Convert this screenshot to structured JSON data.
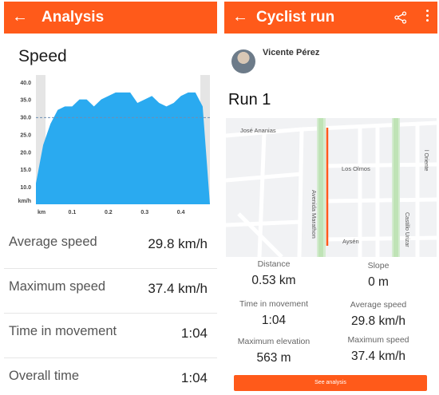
{
  "left": {
    "header": {
      "back_icon": "←",
      "title": "Analysis"
    },
    "section_title": "Speed",
    "stats": [
      {
        "label": "Average speed",
        "value": "29.8 km/h"
      },
      {
        "label": "Maximum speed",
        "value": "37.4 km/h"
      },
      {
        "label": "Time in movement",
        "value": "1:04"
      },
      {
        "label": "Overall time",
        "value": "1:04"
      }
    ]
  },
  "chart_data": {
    "type": "area",
    "x": [
      0.0,
      0.02,
      0.04,
      0.06,
      0.08,
      0.1,
      0.12,
      0.14,
      0.16,
      0.18,
      0.2,
      0.22,
      0.24,
      0.26,
      0.28,
      0.3,
      0.32,
      0.34,
      0.36,
      0.38,
      0.4,
      0.42,
      0.44,
      0.46,
      0.48
    ],
    "values": [
      11,
      22,
      28,
      32,
      33,
      33,
      35,
      35,
      33,
      35,
      36,
      37,
      37,
      37,
      34,
      35,
      36,
      34,
      33,
      34,
      36,
      37,
      37,
      33,
      0
    ],
    "average": 29.8,
    "y_ticks": [
      "10.0",
      "15.0",
      "20.0",
      "25.0",
      "30.0",
      "35.0",
      "40.0"
    ],
    "x_ticks": [
      "0.1",
      "0.2",
      "0.3",
      "0.4"
    ],
    "xlabel": "km",
    "ylabel": "km/h",
    "ylim": [
      5,
      42
    ],
    "xlim": [
      0,
      0.48
    ],
    "colors": {
      "area": "#2aaaf0",
      "area_dark": "#1e9de6",
      "grey": "#e5e5e5",
      "average": "#6e8fb4"
    }
  },
  "right": {
    "header": {
      "back_icon": "←",
      "title": "Cyclist run",
      "share_icon": "share-icon",
      "more_icon": "more-vert-icon"
    },
    "user_name": "Vicente Pérez",
    "run_title": "Run 1",
    "map_labels": {
      "jose_anania": "José Ananias",
      "los_olmos": "Los Olmos",
      "avenida": "Avenida Marathon",
      "aysen": "Aysén",
      "oriente": "l Oriente",
      "castillo": "Castillo Urizar"
    },
    "metrics": [
      {
        "label": "Distance",
        "value": "0.53 km"
      },
      {
        "label": "Slope",
        "value": "0 m"
      },
      {
        "label": "Time in movement",
        "value": "1:04"
      },
      {
        "label": "Average speed",
        "value": "29.8 km/h"
      },
      {
        "label": "Maximum elevation",
        "value": "563 m"
      },
      {
        "label": "Maximum speed",
        "value": "37.4 km/h"
      }
    ],
    "cta_label": "See analysis"
  },
  "brand": {
    "accent": "#ff5a1a"
  }
}
